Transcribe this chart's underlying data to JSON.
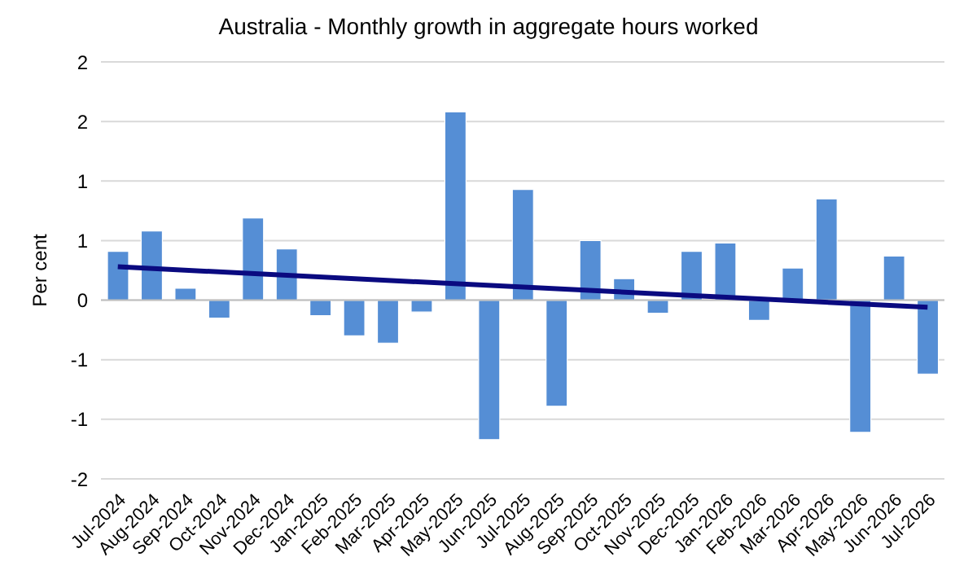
{
  "chart_data": {
    "type": "bar",
    "title": "Australia - Monthly growth in aggregate hours worked",
    "ylabel": "Per cent",
    "categories": [
      "Jul-2024",
      "Aug-2024",
      "Sep-2024",
      "Oct-2024",
      "Nov-2024",
      "Dec-2024",
      "Jan-2025",
      "Feb-2025",
      "Mar-2025",
      "Apr-2025",
      "May-2025",
      "Jun-2025",
      "Jul-2025",
      "Aug-2025",
      "Sep-2025",
      "Oct-2025",
      "Nov-2025",
      "Dec-2025",
      "Jan-2026",
      "Feb-2026",
      "Mar-2026",
      "Apr-2026",
      "May-2026",
      "Jun-2026",
      "Jul-2026"
    ],
    "series": [
      {
        "color": "#558ed5",
        "values": [
          0.41,
          0.58,
          0.1,
          -0.15,
          0.69,
          0.43,
          -0.13,
          -0.3,
          -0.36,
          -0.1,
          1.58,
          -1.17,
          0.93,
          -0.89,
          0.5,
          0.18,
          -0.11,
          0.41,
          0.48,
          -0.17,
          0.27,
          0.85,
          -1.11,
          0.37,
          -0.62
        ]
      },
      {
        "type": "line",
        "color": "#0a0a80",
        "x": [
          "Jul-2024",
          "Jul-2026"
        ],
        "values": [
          0.28,
          -0.06
        ]
      }
    ],
    "ylim": [
      -1.5,
      2
    ],
    "yticks": [
      {
        "value": -1.5,
        "label": "-2"
      },
      -1,
      {
        "value": -0.5,
        "label": "-1"
      },
      0,
      {
        "value": 0.5,
        "label": "1"
      },
      1,
      {
        "value": 1.5,
        "label": "2"
      },
      2
    ],
    "grid": "y",
    "marker": "none",
    "line_style": "solid"
  }
}
